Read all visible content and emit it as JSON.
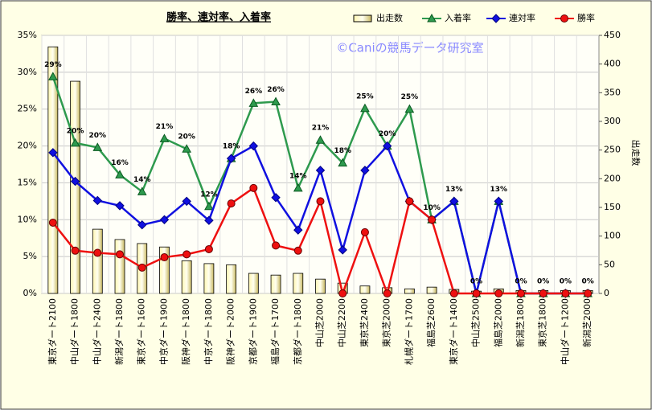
{
  "chart_data": {
    "type": "bar_line",
    "title": "勝率、連対率、入着率",
    "watermark": "©Caniの競馬データ研究室",
    "y2_label": "出走数",
    "categories": [
      "東京ダート2100",
      "中山ダート1800",
      "中山ダート2400",
      "新潟ダート1800",
      "東京ダート1600",
      "中京ダート1900",
      "阪神ダート1800",
      "中京ダート1800",
      "阪神ダート2000",
      "京都ダート1900",
      "福島ダート1700",
      "京都ダート1800",
      "中山芝2000",
      "中山芝2200",
      "東京芝2400",
      "東京芝2000",
      "札幌ダート1700",
      "福島芝2600",
      "東京ダート1400",
      "中山芝2500",
      "福島芝2000",
      "新潟芝1800",
      "東京芝1800",
      "中山ダート1200",
      "新潟芝2000"
    ],
    "series": [
      {
        "name": "出走数",
        "kind": "bar",
        "axis": "y2",
        "color": "#e8e0a0",
        "values": [
          430,
          370,
          112,
          94,
          87,
          81,
          57,
          52,
          50,
          35,
          32,
          35,
          25,
          18,
          13,
          10,
          8,
          11,
          7,
          4,
          8,
          5,
          5,
          5,
          5
        ]
      },
      {
        "name": "入着率",
        "kind": "line",
        "marker": "triangle",
        "color": "#2e9a4e",
        "values": [
          29.4,
          20.4,
          19.8,
          16.1,
          13.8,
          21.0,
          19.6,
          11.8,
          18.3,
          25.8,
          26.0,
          14.3,
          20.8,
          17.7,
          25.1,
          20.0,
          25.0,
          10.0,
          12.5,
          0,
          12.5,
          0,
          0,
          0,
          0
        ],
        "value_labels": [
          "29%",
          "20%",
          "20%",
          "16%",
          "14%",
          "21%",
          "20%",
          "12%",
          "18%",
          "26%",
          "26%",
          "14%",
          "21%",
          "18%",
          "25%",
          "20%",
          "25%",
          "10%",
          "13%",
          "0%",
          "13%",
          "0%",
          "0%",
          "0%",
          "0%"
        ]
      },
      {
        "name": "連対率",
        "kind": "line",
        "marker": "diamond",
        "color": "#1010e0",
        "values": [
          19.1,
          15.2,
          12.6,
          11.9,
          9.3,
          10.0,
          12.5,
          9.9,
          18.3,
          20.0,
          13.0,
          8.6,
          16.7,
          5.9,
          16.7,
          20.0,
          12.5,
          10.0,
          12.5,
          0,
          12.5,
          0,
          0,
          0,
          0
        ]
      },
      {
        "name": "勝率",
        "kind": "line",
        "marker": "circle",
        "color": "#ee1010",
        "values": [
          9.6,
          5.8,
          5.5,
          5.3,
          3.5,
          4.9,
          5.3,
          6.0,
          12.2,
          14.3,
          6.5,
          5.8,
          12.5,
          0,
          8.3,
          0,
          12.5,
          10.0,
          0,
          0,
          0,
          0,
          0,
          0,
          0
        ]
      }
    ],
    "ylim": [
      0,
      35
    ],
    "yticks": [
      {
        "value": 0,
        "label": "0%"
      },
      {
        "value": 5,
        "label": "5%"
      },
      {
        "value": 10,
        "label": "10%"
      },
      {
        "value": 15,
        "label": "15%"
      },
      {
        "value": 20,
        "label": "20%"
      },
      {
        "value": 25,
        "label": "25%"
      },
      {
        "value": 30,
        "label": "30%"
      },
      {
        "value": 35,
        "label": "35%"
      }
    ],
    "y2lim": [
      0,
      450
    ],
    "y2ticks": [
      0,
      50,
      100,
      150,
      200,
      250,
      300,
      350,
      400,
      450
    ],
    "grid": true
  }
}
